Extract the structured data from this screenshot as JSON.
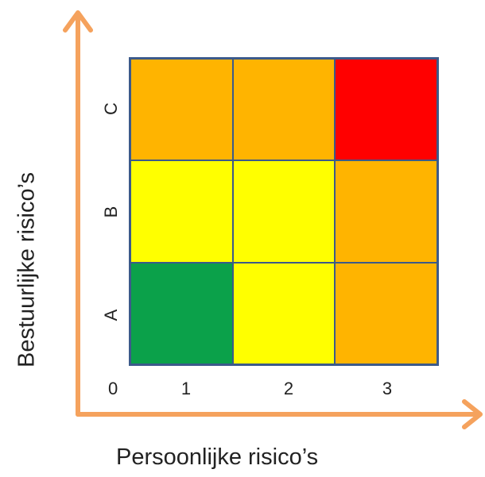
{
  "diagram": {
    "x_axis_title": "Persoonlijke risico’s",
    "y_axis_title": "Bestuurlijke risico’s",
    "origin_label": "0",
    "column_labels": [
      "1",
      "2",
      "3"
    ],
    "row_labels": [
      "C",
      "B",
      "A"
    ],
    "axis_color": "#f5a25d",
    "grid_line_color": "#3c5a8a",
    "colors": {
      "green": "#0ba14a",
      "yellow": "#ffff00",
      "orange": "#ffb400",
      "red": "#ff0000"
    },
    "cells": [
      [
        "orange",
        "orange",
        "red"
      ],
      [
        "yellow",
        "yellow",
        "orange"
      ],
      [
        "green",
        "yellow",
        "orange"
      ]
    ]
  }
}
